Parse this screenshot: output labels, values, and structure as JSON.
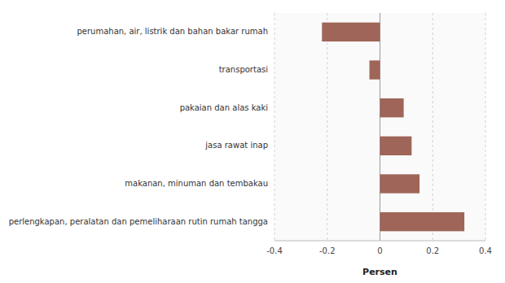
{
  "chart_data": {
    "type": "bar",
    "orientation": "horizontal",
    "categories": [
      "perlengkapan, peralatan dan pemeliharaan rutin rumah tangga",
      "makanan, minuman dan tembakau",
      "jasa rawat inap",
      "pakaian dan alas kaki",
      "transportasi",
      "perumahan, air, listrik dan bahan bakar rumah"
    ],
    "values": [
      0.32,
      0.15,
      0.12,
      0.09,
      -0.04,
      -0.22
    ],
    "color": "#9e6558",
    "xlabel": "Persen",
    "xlim": [
      -0.4,
      0.4
    ],
    "xticks": [
      -0.4,
      -0.2,
      0,
      0.2,
      0.4
    ],
    "grid": true
  }
}
